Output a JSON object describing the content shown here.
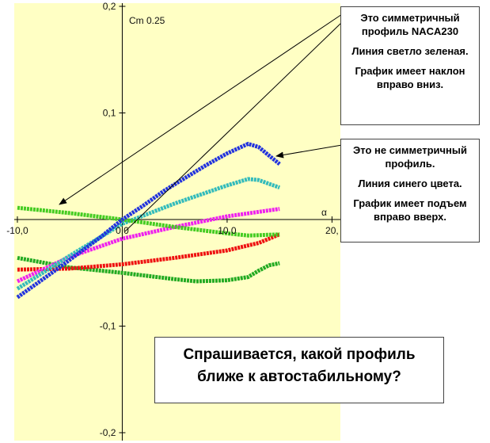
{
  "chart_data": {
    "type": "line",
    "ylabel": "Cm 0.25",
    "xlabel": "α",
    "xlim": [
      -10.3,
      20.8
    ],
    "ylim": [
      -0.2,
      0.2
    ],
    "xticks": [
      {
        "value": -10,
        "label": "-10,0"
      },
      {
        "value": 0,
        "label": "0,0"
      },
      {
        "value": 10,
        "label": "10,0"
      },
      {
        "value": 20,
        "label": "20,"
      }
    ],
    "yticks": [
      {
        "value": 0.2,
        "label": "0,2"
      },
      {
        "value": 0.1,
        "label": "0,1"
      },
      {
        "value": -0.1,
        "label": "-0,1"
      },
      {
        "value": -0.2,
        "label": "-0,2"
      }
    ],
    "series": [
      {
        "color": "#22aa22",
        "x": [
          -10,
          -5,
          0,
          5,
          7,
          10,
          12,
          13,
          14,
          15
        ],
        "values": [
          -0.036,
          -0.045,
          -0.05,
          -0.056,
          -0.058,
          -0.057,
          -0.054,
          -0.048,
          -0.043,
          -0.041
        ]
      },
      {
        "color": "#ee1111",
        "x": [
          -10,
          -5,
          0,
          5,
          10,
          13,
          15
        ],
        "values": [
          -0.047,
          -0.046,
          -0.042,
          -0.036,
          -0.029,
          -0.022,
          -0.014
        ]
      },
      {
        "color": "#ee22ee",
        "x": [
          -10,
          -5,
          0,
          5,
          10,
          15
        ],
        "values": [
          -0.058,
          -0.035,
          -0.018,
          -0.007,
          0.003,
          0.01
        ]
      },
      {
        "color": "#33bbbb",
        "x": [
          -10,
          -5,
          0,
          5,
          10,
          12,
          13,
          15
        ],
        "values": [
          -0.065,
          -0.034,
          -0.004,
          0.015,
          0.032,
          0.038,
          0.037,
          0.03
        ]
      },
      {
        "color": "#44cc22",
        "x": [
          -10,
          -5,
          0,
          5,
          10,
          12,
          15
        ],
        "values": [
          0.011,
          0.006,
          0.0,
          -0.007,
          -0.013,
          -0.015,
          -0.014
        ]
      },
      {
        "color": "#2233dd",
        "x": [
          -10,
          -6,
          -2,
          0,
          2,
          4,
          6,
          8,
          10,
          12,
          13,
          14,
          15
        ],
        "values": [
          -0.073,
          -0.045,
          -0.016,
          0.0,
          0.013,
          0.027,
          0.039,
          0.051,
          0.062,
          0.071,
          0.068,
          0.06,
          0.052
        ]
      }
    ],
    "annotations": [
      {
        "paragraphs": [
          "Это симметричный профиль NACA230",
          "Линия светло зеленая.",
          "График имеет наклон вправо вниз."
        ]
      },
      {
        "paragraphs": [
          "Это не симметричный профиль.",
          "Линия синего цвета.",
          "График имеет подъем вправо вверх."
        ]
      },
      {
        "paragraphs": [
          "Спрашивается, какой профиль ближе к автостабильному?"
        ]
      }
    ]
  }
}
